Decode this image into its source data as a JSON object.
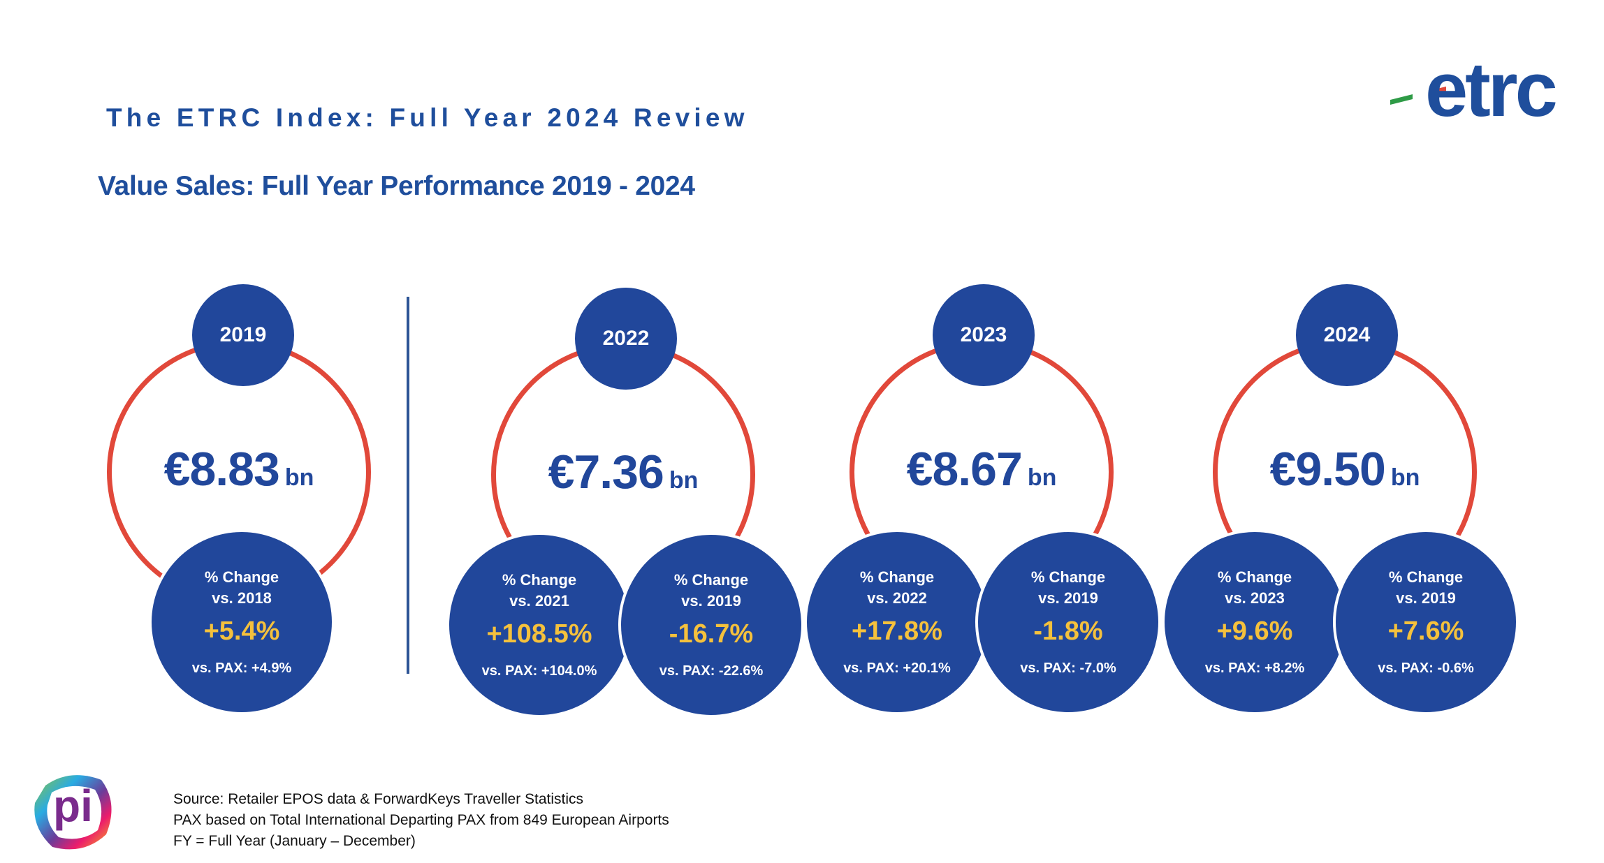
{
  "header": {
    "title": "The ETRC Index: Full Year 2024 Review",
    "subtitle": "Value Sales: Full Year Performance 2019 - 2024",
    "logo_text": "etrc",
    "colors": {
      "primary": "#21479b",
      "ring": "#e1483a",
      "highlight": "#f5c13c"
    }
  },
  "years": [
    {
      "year": "2019",
      "value": "€8.83",
      "unit": "bn",
      "stats": [
        {
          "label1": "% Change",
          "label2": "vs. 2018",
          "change": "+5.4%",
          "pax": "vs. PAX: +4.9%"
        }
      ]
    },
    {
      "year": "2022",
      "value": "€7.36",
      "unit": "bn",
      "stats": [
        {
          "label1": "% Change",
          "label2": "vs. 2021",
          "change": "+108.5%",
          "pax": "vs. PAX: +104.0%"
        },
        {
          "label1": "% Change",
          "label2": "vs. 2019",
          "change": "-16.7%",
          "pax": "vs. PAX: -22.6%"
        }
      ]
    },
    {
      "year": "2023",
      "value": "€8.67",
      "unit": "bn",
      "stats": [
        {
          "label1": "% Change",
          "label2": "vs. 2022",
          "change": "+17.8%",
          "pax": "vs. PAX: +20.1%"
        },
        {
          "label1": "% Change",
          "label2": "vs. 2019",
          "change": "-1.8%",
          "pax": "vs. PAX: -7.0%"
        }
      ]
    },
    {
      "year": "2024",
      "value": "€9.50",
      "unit": "bn",
      "stats": [
        {
          "label1": "% Change",
          "label2": "vs. 2023",
          "change": "+9.6%",
          "pax": "vs. PAX: +8.2%"
        },
        {
          "label1": "% Change",
          "label2": "vs. 2019",
          "change": "+7.6%",
          "pax": "vs. PAX: -0.6%"
        }
      ]
    }
  ],
  "footer": {
    "source_lines": [
      "Source: Retailer EPOS data & ForwardKeys Traveller Statistics",
      "PAX based on Total International Departing PAX from 849 European Airports",
      "FY = Full Year (January – December)"
    ],
    "pi_logo_text": "pi"
  }
}
